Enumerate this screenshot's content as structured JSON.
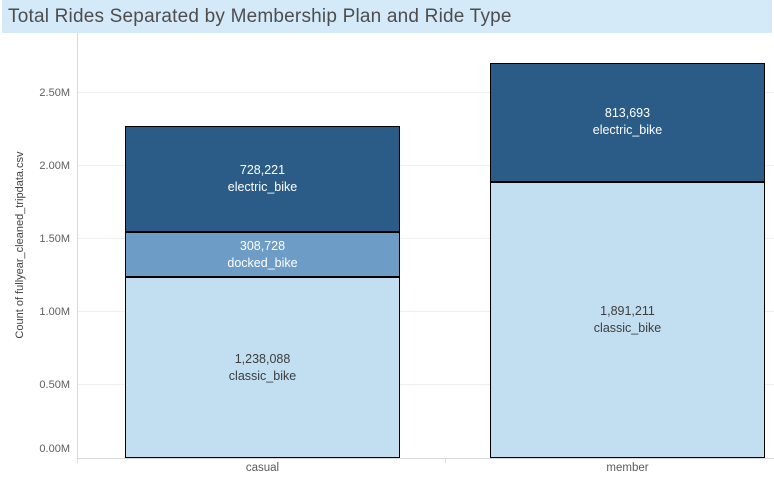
{
  "header": {
    "title": "Total Rides Separated by Membership Plan and Ride Type"
  },
  "chart_data": {
    "type": "bar",
    "stacked": true,
    "orientation": "vertical",
    "title": "Total Rides Separated by Membership Plan and Ride Type",
    "categories": [
      "casual",
      "member"
    ],
    "series": [
      {
        "name": "classic_bike",
        "color": "#c2dff1",
        "label_color": "#3d3d3d",
        "values": [
          1238088,
          1891211
        ],
        "value_labels": [
          "1,238,088",
          "1,891,211"
        ]
      },
      {
        "name": "docked_bike",
        "color": "#6d9cc7",
        "label_color": "#ffffff",
        "values": [
          308728,
          null
        ],
        "value_labels": [
          "308,728",
          null
        ]
      },
      {
        "name": "electric_bike",
        "color": "#2b5c87",
        "label_color": "#ffffff",
        "values": [
          728221,
          813693
        ],
        "value_labels": [
          "728,221",
          "813,693"
        ]
      }
    ],
    "ylabel": "Count of fullyear_cleaned_tripdata.csv",
    "xlabel": "",
    "yticks": [
      {
        "label": "0.00M",
        "value": 0
      },
      {
        "label": "0.50M",
        "value": 500000
      },
      {
        "label": "1.00M",
        "value": 1000000
      },
      {
        "label": "1.50M",
        "value": 1500000
      },
      {
        "label": "2.00M",
        "value": 2000000
      },
      {
        "label": "2.50M",
        "value": 2500000
      }
    ],
    "ylim": [
      0,
      2910000
    ],
    "grid": "horizontal",
    "legend": "none"
  },
  "colors": {
    "banner_bg": "#d5eaf8",
    "title_text": "#4d4d4d",
    "bar_border": "#000000",
    "gridline": "#f0f0f0",
    "axis_line": "#d9d9d9",
    "ytick_text": "#5f5f5f",
    "xtick_text": "#5b5b5b"
  }
}
